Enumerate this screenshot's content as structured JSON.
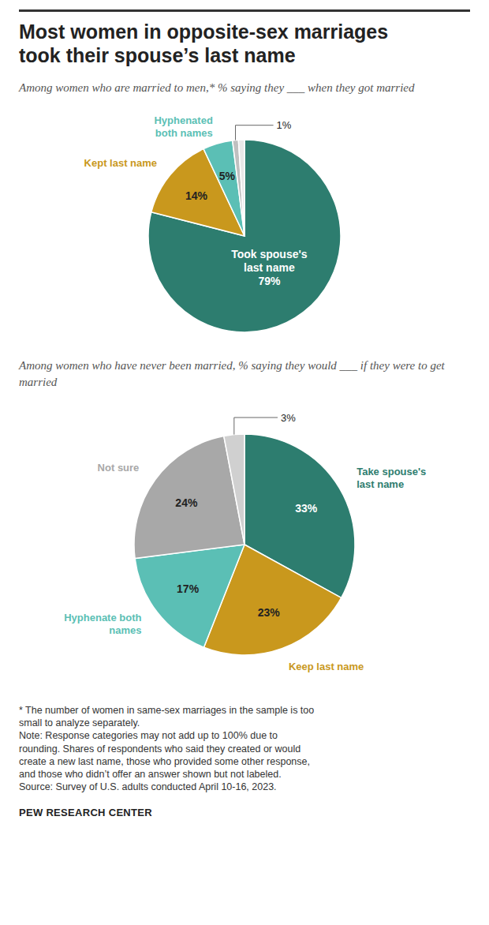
{
  "title": [
    "Most women in opposite-sex marriages",
    "took their spouse’s last name"
  ],
  "chart_data": [
    {
      "type": "pie",
      "subtitle": "Among women who are married to men,* % saying they ___ when they got married",
      "categories": [
        "Took spouse's last name",
        "Kept last name",
        "Hyphenated both names",
        null,
        null
      ],
      "values": [
        79,
        14,
        5,
        1,
        1
      ],
      "value_labels": [
        "79%",
        "14%",
        "5%",
        "1%",
        null
      ],
      "colors": [
        "#2d7d6f",
        "#c9981d",
        "#5bbfb5",
        "#c0c0c0",
        "#e8e8e8"
      ],
      "data_labels": true
    },
    {
      "type": "pie",
      "subtitle": "Among women who have never been married, % saying they would ___ if they were to get married",
      "categories": [
        "Take spouse's last name",
        "Keep last name",
        "Hyphenate both names",
        "Not sure",
        null
      ],
      "values": [
        33,
        23,
        17,
        24,
        3
      ],
      "value_labels": [
        "33%",
        "23%",
        "17%",
        "24%",
        "3%"
      ],
      "colors": [
        "#2d7d6f",
        "#c9981d",
        "#5bbfb5",
        "#a8a8a8",
        "#d0d0d0"
      ],
      "data_labels": true
    }
  ],
  "notes": [
    "* The number of women in same-sex marriages in the sample is too",
    "small to analyze separately.",
    "Note: Response categories may not add up to 100% due to",
    "rounding. Shares of respondents who said they created or would",
    "create a new last name, those who provided some other response,",
    "and those who didn’t offer an answer shown but not labeled.",
    "Source: Survey of U.S. adults conducted April 10-16, 2023."
  ],
  "source": "PEW RESEARCH CENTER"
}
